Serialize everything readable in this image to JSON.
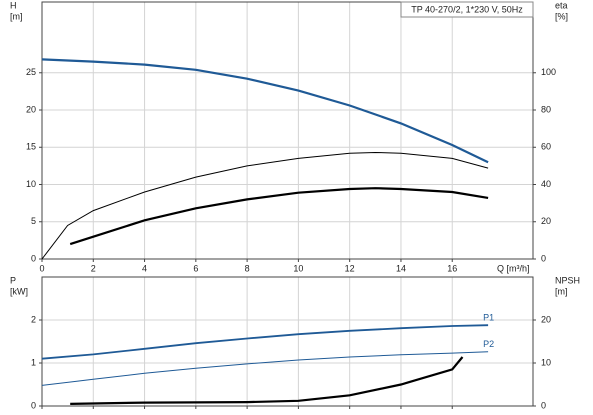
{
  "chart_data": [
    {
      "type": "line",
      "title": "TP 40-270/2, 1*230 V, 50Hz",
      "ylabel": "H",
      "yunit": "[m]",
      "y2label": "eta",
      "y2unit": "[%]",
      "xlabel": "Q [m³/h]",
      "xlim": [
        0,
        19.15
      ],
      "xticks": [
        0,
        2,
        4,
        6,
        8,
        10,
        12,
        14,
        16
      ],
      "xtick_labels": true,
      "ylim": [
        0,
        34.5
      ],
      "yticks": [
        0,
        5,
        10,
        15,
        20,
        25
      ],
      "y2lim": [
        0,
        138
      ],
      "y2ticks": [
        0,
        20,
        40,
        60,
        80,
        100
      ],
      "grid": true,
      "series": [
        {
          "color": "#1f5a96",
          "line_width": 2.2,
          "x": [
            0,
            2,
            4,
            6,
            8,
            10,
            12,
            14,
            16,
            17.4
          ],
          "values": [
            26.8,
            26.5,
            26.1,
            25.4,
            24.2,
            22.6,
            20.6,
            18.2,
            15.3,
            13.0
          ]
        },
        {
          "color": "#000000",
          "line_width": 1,
          "axis": "y2",
          "x": [
            0,
            1,
            2,
            4,
            6,
            8,
            10,
            12,
            13,
            14,
            16,
            17.4
          ],
          "values": [
            0,
            18,
            26,
            36,
            44,
            50,
            54,
            56.8,
            57.2,
            56.8,
            54,
            48.8
          ]
        },
        {
          "color": "#000000",
          "line_width": 2.2,
          "axis": "y2",
          "x": [
            1.1,
            2,
            4,
            6,
            8,
            10,
            12,
            13,
            14,
            16,
            17.4
          ],
          "values": [
            8,
            12,
            20.8,
            27.2,
            32,
            35.6,
            37.6,
            38,
            37.6,
            36,
            32.8
          ]
        }
      ]
    },
    {
      "type": "line",
      "ylabel": "P",
      "yunit": "[kW]",
      "y2label": "NPSH",
      "y2unit": "[m]",
      "xlim": [
        0,
        19.15
      ],
      "xticks": [
        0,
        2,
        4,
        6,
        8,
        10,
        12,
        14,
        16
      ],
      "xtick_labels": false,
      "ylim": [
        0,
        3
      ],
      "yticks": [
        0,
        1,
        2
      ],
      "y2lim": [
        0,
        30
      ],
      "y2ticks": [
        0,
        10,
        20
      ],
      "grid": true,
      "series": [
        {
          "name": "P1",
          "color": "#1f5a96",
          "line_width": 1.8,
          "x": [
            0,
            2,
            4,
            6,
            8,
            10,
            12,
            14,
            16,
            17.4
          ],
          "values": [
            1.1,
            1.2,
            1.33,
            1.46,
            1.57,
            1.67,
            1.75,
            1.81,
            1.86,
            1.88
          ]
        },
        {
          "name": "P2",
          "color": "#1f5a96",
          "line_width": 1,
          "x": [
            0,
            2,
            4,
            6,
            8,
            10,
            12,
            14,
            16,
            17.4
          ],
          "values": [
            0.48,
            0.62,
            0.76,
            0.88,
            0.98,
            1.07,
            1.14,
            1.19,
            1.23,
            1.26
          ]
        },
        {
          "color": "#000000",
          "line_width": 2.2,
          "axis": "y2",
          "x": [
            1.1,
            4,
            8,
            10,
            12,
            14,
            16,
            16.4
          ],
          "values": [
            0.5,
            0.8,
            0.9,
            1.2,
            2.5,
            5,
            8.5,
            11.4
          ]
        }
      ]
    }
  ]
}
